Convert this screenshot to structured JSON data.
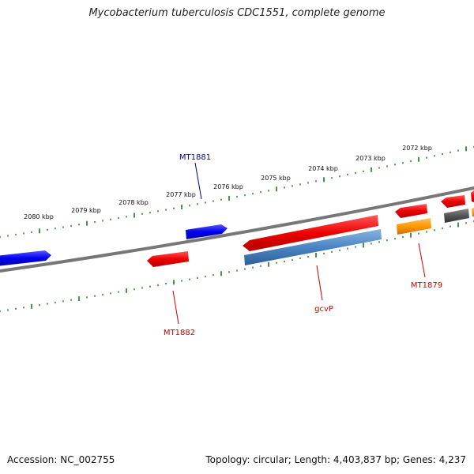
{
  "title": "Mycobacterium tuberculosis CDC1551, complete genome",
  "accession": "Accession: NC_002755",
  "summary": "Topology: circular; Length: 4,403,837 bp; Genes: 4,237",
  "colors": {
    "forward_gene": "#0000ee",
    "reverse_gene": "#ee0000",
    "gcvP_gene": "#4a84c4",
    "orange_gene": "#ff9900",
    "gray_gene": "#555555",
    "ruler_ticks": "#1a7a1a",
    "backbone": "#777777",
    "label_red": "#cc0000",
    "label_blue": "#000099"
  },
  "ruler_labels": [
    "2080 kbp",
    "2079 kbp",
    "2078 kbp",
    "2077 kbp",
    "2076 kbp",
    "2075 kbp",
    "2074 kbp",
    "2073 kbp",
    "2072 kbp"
  ],
  "gene_labels": {
    "MT1881": "MT1881",
    "MT1882": "MT1882",
    "gcvP": "gcvP",
    "MT1879": "MT1879"
  }
}
